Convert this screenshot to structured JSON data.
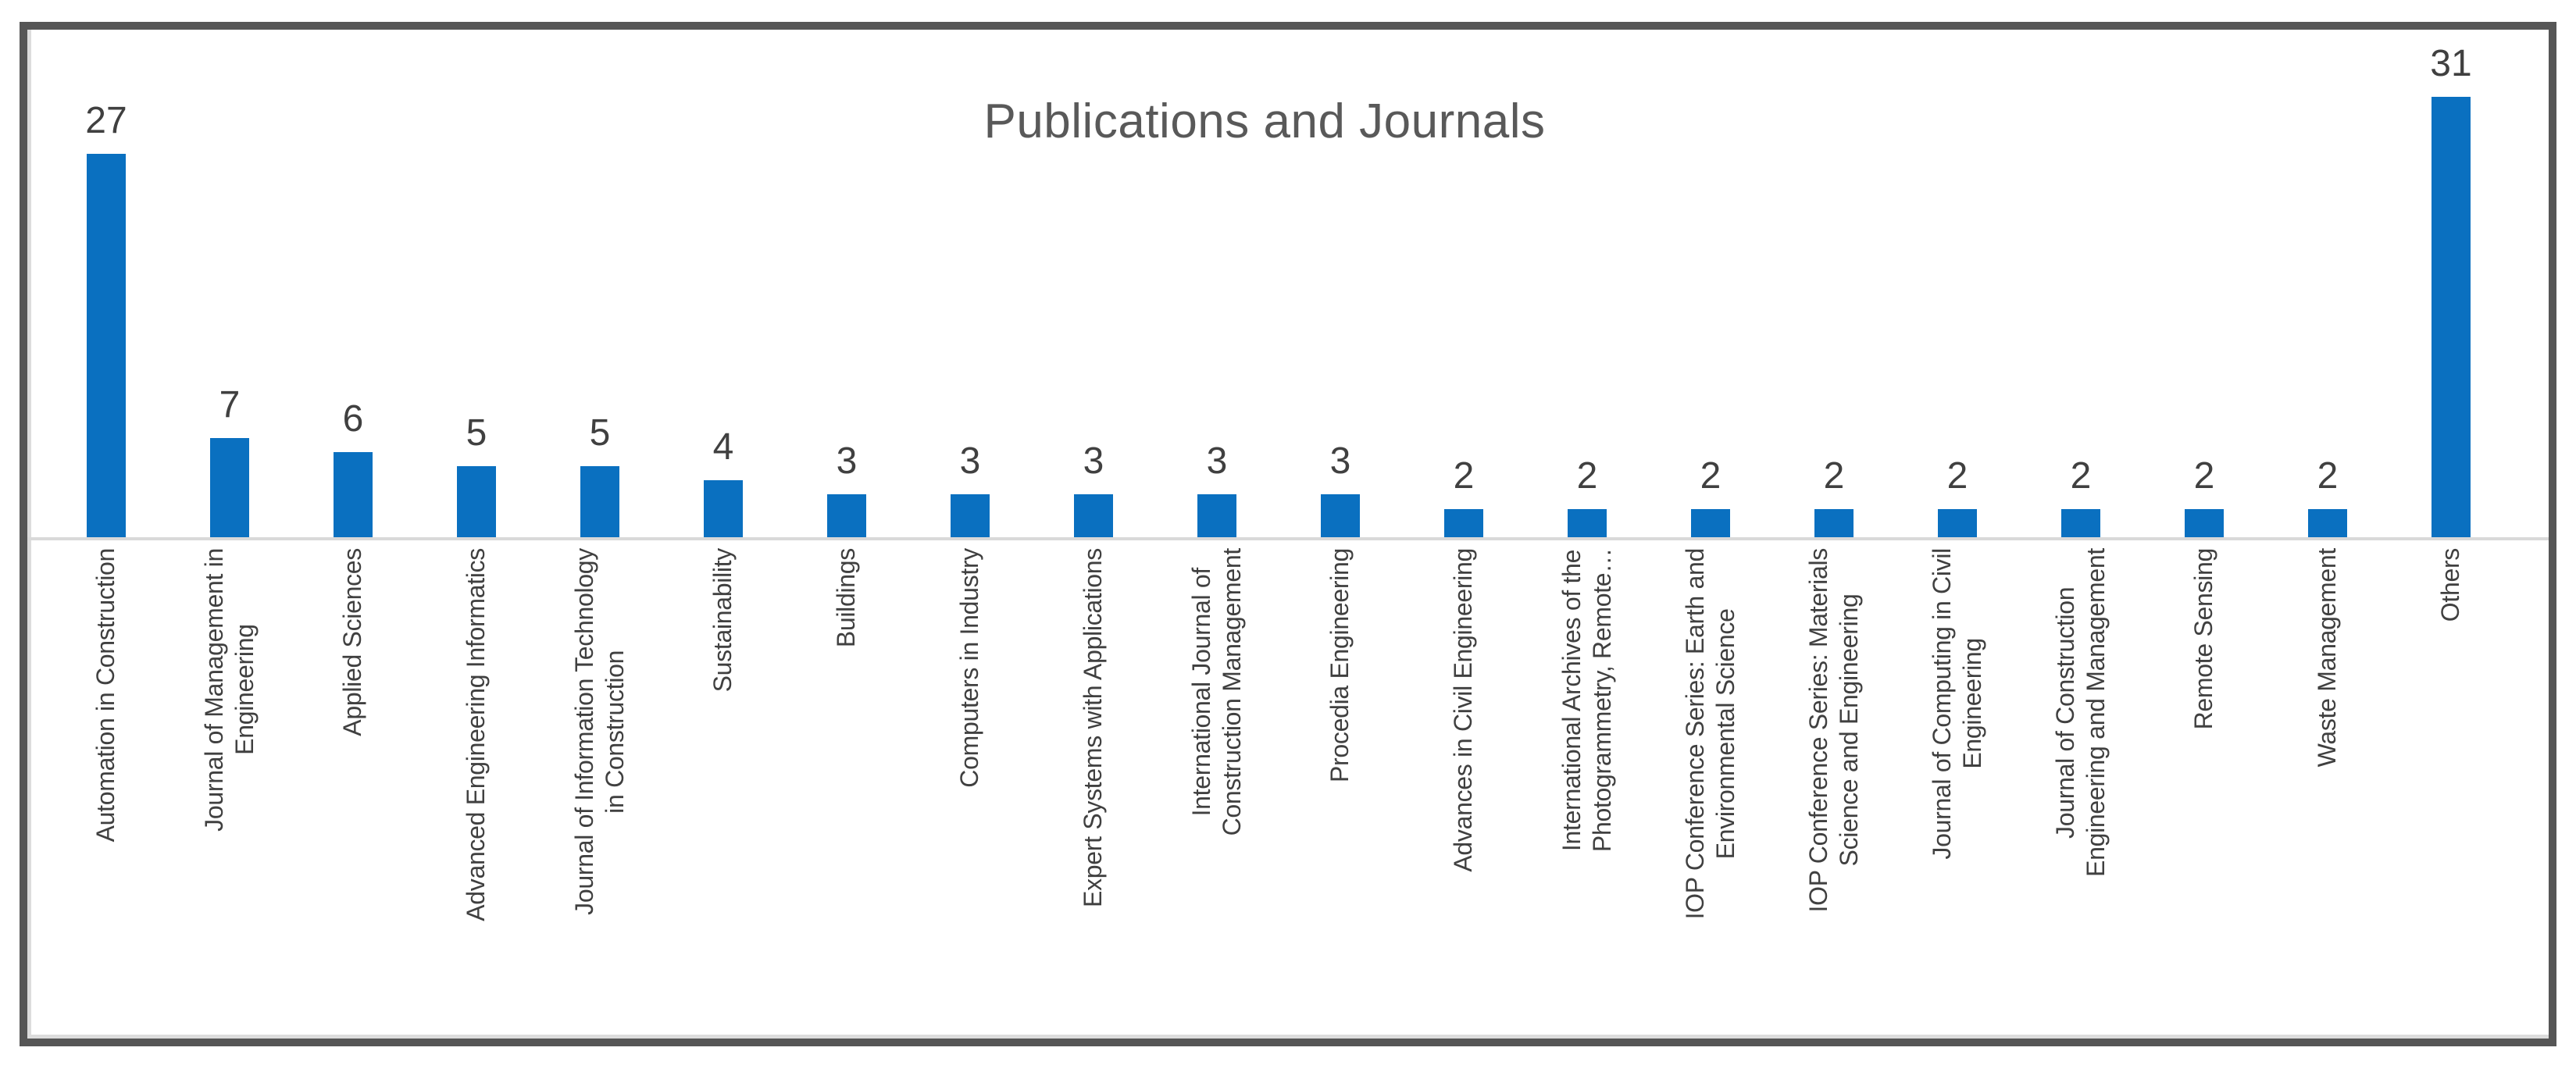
{
  "title": "Publications and Journals",
  "colors": {
    "bar": "#0a70c0",
    "title_text": "#595959",
    "label_text": "#404040",
    "axis_line": "#d9d9d9",
    "frame_border": "#565656",
    "background": "#ffffff"
  },
  "chart_data": {
    "type": "bar",
    "title": "Publications and Journals",
    "xlabel": "",
    "ylabel": "",
    "ylim": [
      0,
      35
    ],
    "grid": false,
    "legend": null,
    "y_axis_visible": false,
    "data_labels_shown": true,
    "x_label_rotation_degrees": 90,
    "categories": [
      "Automation in Construction",
      "Journal of Management in Engineering",
      "Applied Sciences",
      "Advanced Engineering Informatics",
      "Journal of Information Technology in Construction",
      "Sustainability",
      "Buildings",
      "Computers in Industry",
      "Expert Systems with Applications",
      "International Journal of Construction Management",
      "Procedia Engineering",
      "Advances in Civil Engineering",
      "International Archives of the Photogrammetry, Remote…",
      "IOP Conference Series: Earth and Environmental Science",
      "IOP Conference Series: Materials Science and Engineering",
      "Journal of Computing in Civil Engineering",
      "Journal of Construction Engineering and Management",
      "Remote Sensing",
      "Waste Management",
      "Others"
    ],
    "category_display_lines": [
      [
        "Automation in Construction"
      ],
      [
        "Journal of Management in",
        "Engineering"
      ],
      [
        "Applied Sciences"
      ],
      [
        "Advanced Engineering Informatics"
      ],
      [
        "Journal of Information Technology",
        "in Construction"
      ],
      [
        "Sustainability"
      ],
      [
        "Buildings"
      ],
      [
        "Computers in Industry"
      ],
      [
        "Expert Systems with Applications"
      ],
      [
        "International Journal of",
        "Construction Management"
      ],
      [
        "Procedia Engineering"
      ],
      [
        "Advances in Civil Engineering"
      ],
      [
        "International Archives of the",
        "Photogrammetry, Remote…"
      ],
      [
        "IOP Conference Series: Earth and",
        "Environmental Science"
      ],
      [
        "IOP Conference Series: Materials",
        "Science and Engineering"
      ],
      [
        "Journal of Computing in Civil",
        "Engineering"
      ],
      [
        "Journal of Construction",
        "Engineering and Management"
      ],
      [
        "Remote Sensing"
      ],
      [
        "Waste Management"
      ],
      [
        "Others"
      ]
    ],
    "values": [
      27,
      7,
      6,
      5,
      5,
      4,
      3,
      3,
      3,
      3,
      3,
      2,
      2,
      2,
      2,
      2,
      2,
      2,
      2,
      31
    ]
  }
}
